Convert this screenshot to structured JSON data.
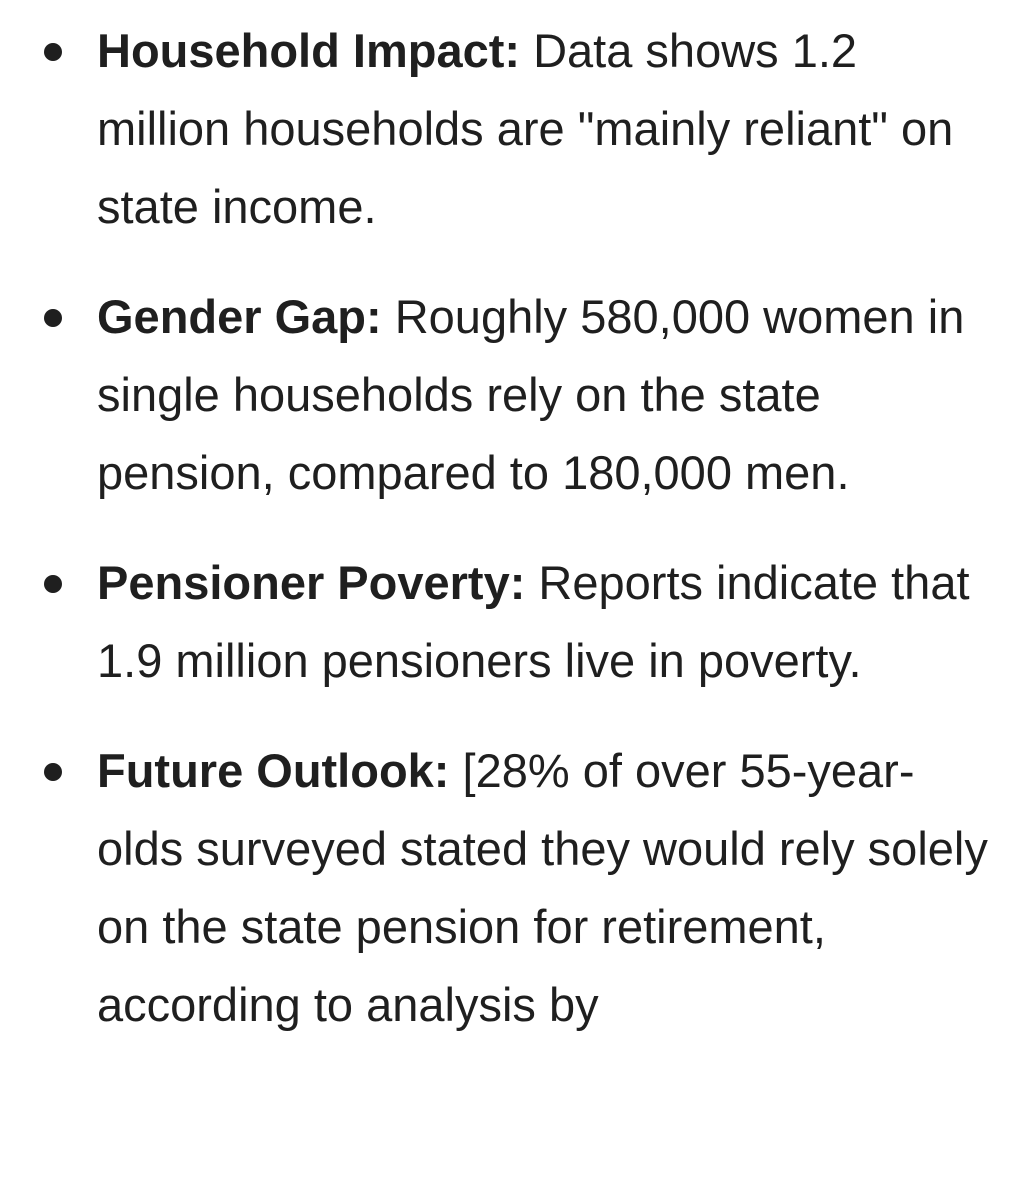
{
  "items": [
    {
      "heading": "Household Impact:",
      "text": " Data shows 1.2 million households are \"mainly reliant\" on state income."
    },
    {
      "heading": "Gender Gap:",
      "text": " Roughly 580,000 women in single households rely on the state pension, compared to 180,000 men."
    },
    {
      "heading": "Pensioner Poverty:",
      "text": " Reports indicate that 1.9 million pensioners live in poverty."
    },
    {
      "heading": "Future Outlook:",
      "text": " [28% of over 55-year-olds surveyed stated they would rely solely on the state pension for retirement, according to analysis by"
    }
  ]
}
